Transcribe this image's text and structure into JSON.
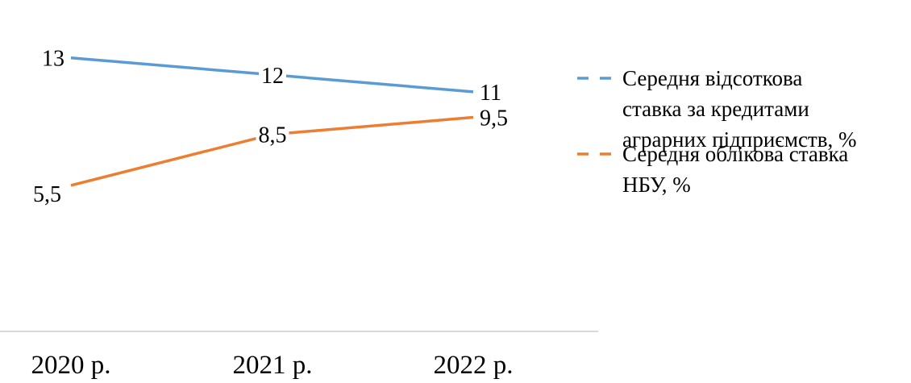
{
  "chart_data": {
    "type": "line",
    "categories": [
      "2020 р.",
      "2021 р.",
      "2022 р."
    ],
    "series": [
      {
        "name": "Середня відсоткова ставка за кредитами аграрних підприємств, %",
        "legend_lines": [
          "Середня відсоткова",
          "ставка за кредитами",
          "аграрних підприємств, %"
        ],
        "values": [
          13,
          12,
          11
        ],
        "data_labels": [
          "13",
          "12",
          "11"
        ],
        "color": "#5B9BD5"
      },
      {
        "name": "Середня облікова ставка НБУ, %",
        "legend_lines": [
          "Середня облікова ставка",
          "НБУ, %"
        ],
        "values": [
          5.5,
          8.5,
          9.5
        ],
        "data_labels": [
          "5,5",
          "8,5",
          "9,5"
        ],
        "color": "#ED7D31"
      }
    ],
    "legend_position": "right",
    "grid": false,
    "axis_color": "#D9D9D9"
  }
}
